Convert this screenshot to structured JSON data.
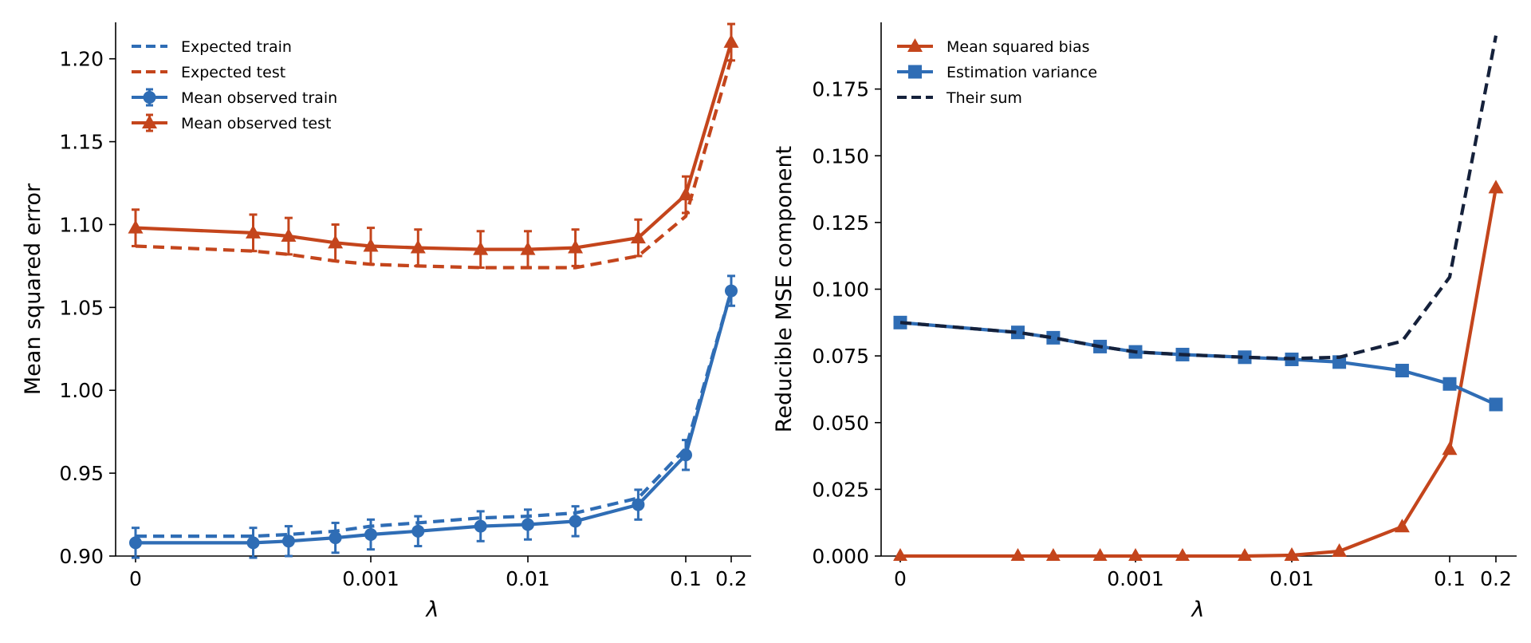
{
  "colors": {
    "train": "#2f6db5",
    "test": "#c4451c",
    "sum": "#15213b",
    "axis": "#000000"
  },
  "chart_data": [
    {
      "type": "line",
      "xscale": "symlog",
      "xlabel": "λ",
      "ylabel": "Mean squared error",
      "xlim": [
        0,
        0.2
      ],
      "ylim": [
        0.9,
        1.222
      ],
      "x_ticks": [
        0,
        0.001,
        0.01,
        0.1,
        0.2
      ],
      "x_tick_labels": [
        "0",
        "0.001",
        "0.01",
        "0.1",
        "0.2"
      ],
      "y_ticks": [
        0.9,
        0.95,
        1.0,
        1.05,
        1.1,
        1.15,
        1.2
      ],
      "y_tick_labels": [
        "0.90",
        "0.95",
        "1.00",
        "1.05",
        "1.10",
        "1.15",
        "1.20"
      ],
      "grid": false,
      "legend_position": "top-left",
      "x": [
        0,
        0.0001,
        0.0002,
        0.0005,
        0.001,
        0.002,
        0.005,
        0.01,
        0.02,
        0.05,
        0.1,
        0.2
      ],
      "series": [
        {
          "name": "Expected train",
          "style": "dashed",
          "color": "train",
          "marker": "none",
          "values": [
            0.912,
            0.912,
            0.913,
            0.915,
            0.918,
            0.92,
            0.923,
            0.924,
            0.926,
            0.935,
            0.965,
            1.06
          ]
        },
        {
          "name": "Expected test",
          "style": "dashed",
          "color": "test",
          "marker": "none",
          "values": [
            1.087,
            1.084,
            1.082,
            1.078,
            1.076,
            1.075,
            1.074,
            1.074,
            1.074,
            1.081,
            1.105,
            1.2
          ]
        },
        {
          "name": "Mean observed train",
          "style": "solid",
          "color": "train",
          "marker": "circle",
          "values": [
            0.908,
            0.908,
            0.909,
            0.911,
            0.913,
            0.915,
            0.918,
            0.919,
            0.921,
            0.931,
            0.961,
            1.06
          ],
          "error": [
            0.009,
            0.009,
            0.009,
            0.009,
            0.009,
            0.009,
            0.009,
            0.009,
            0.009,
            0.009,
            0.009,
            0.009
          ]
        },
        {
          "name": "Mean observed test",
          "style": "solid",
          "color": "test",
          "marker": "triangle",
          "values": [
            1.098,
            1.095,
            1.093,
            1.089,
            1.087,
            1.086,
            1.085,
            1.085,
            1.086,
            1.092,
            1.118,
            1.21
          ],
          "error": [
            0.011,
            0.011,
            0.011,
            0.011,
            0.011,
            0.011,
            0.011,
            0.011,
            0.011,
            0.011,
            0.011,
            0.011
          ]
        }
      ]
    },
    {
      "type": "line",
      "xscale": "symlog",
      "xlabel": "λ",
      "ylabel": "Reducible MSE component",
      "xlim": [
        0,
        0.2
      ],
      "ylim": [
        0,
        0.2
      ],
      "x_ticks": [
        0,
        0.001,
        0.01,
        0.1,
        0.2
      ],
      "x_tick_labels": [
        "0",
        "0.001",
        "0.01",
        "0.1",
        "0.2"
      ],
      "y_ticks": [
        0,
        0.025,
        0.05,
        0.075,
        0.1,
        0.125,
        0.15,
        0.175
      ],
      "y_tick_labels": [
        "0.000",
        "0.025",
        "0.050",
        "0.075",
        "0.100",
        "0.125",
        "0.150",
        "0.175"
      ],
      "grid": false,
      "legend_position": "top-left",
      "x": [
        0,
        0.0001,
        0.0002,
        0.0005,
        0.001,
        0.002,
        0.005,
        0.01,
        0.02,
        0.05,
        0.1,
        0.2
      ],
      "series": [
        {
          "name": "Mean squared bias",
          "style": "solid",
          "color": "test",
          "marker": "triangle",
          "values": [
            0.0,
            0.0,
            0.0,
            0.0,
            0.0,
            0.0,
            0.0,
            0.0003,
            0.0018,
            0.011,
            0.04,
            0.138
          ]
        },
        {
          "name": "Estimation variance",
          "style": "solid",
          "color": "train",
          "marker": "square",
          "values": [
            0.0875,
            0.0838,
            0.0818,
            0.0785,
            0.0765,
            0.0755,
            0.0745,
            0.0737,
            0.0727,
            0.0695,
            0.0645,
            0.0568
          ]
        },
        {
          "name": "Their sum",
          "style": "dashed",
          "color": "sum",
          "marker": "none",
          "values": [
            0.0875,
            0.0838,
            0.0818,
            0.0785,
            0.0765,
            0.0755,
            0.0745,
            0.074,
            0.0745,
            0.0805,
            0.1045,
            0.195
          ]
        }
      ]
    }
  ]
}
